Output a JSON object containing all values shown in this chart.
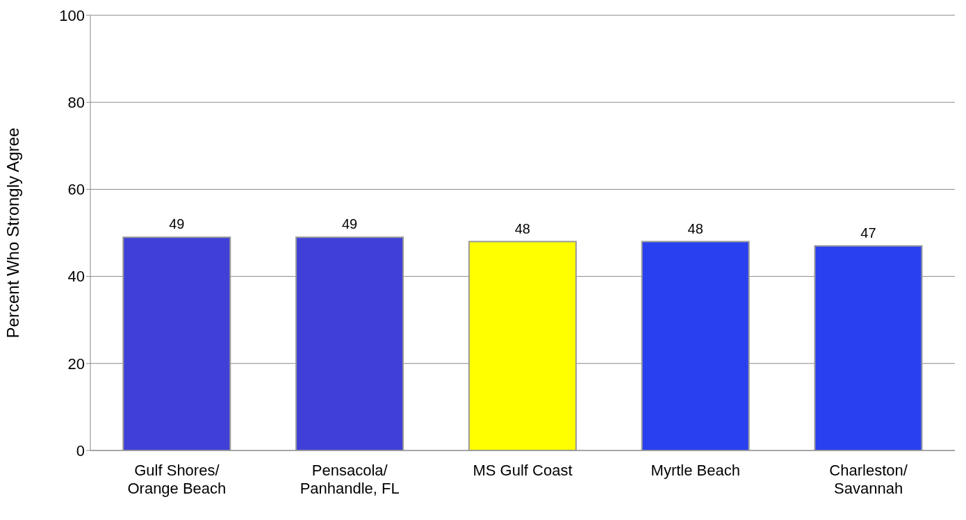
{
  "chart_data": {
    "type": "bar",
    "ylabel": "Percent Who Strongly Agree",
    "categories": [
      "Gulf Shores/\nOrange Beach",
      "Pensacola/\nPanhandle, FL",
      "MS Gulf Coast",
      "Myrtle Beach",
      "Charleston/\nSavannah"
    ],
    "values": [
      49,
      49,
      48,
      48,
      47
    ],
    "colors": [
      "#4040d8",
      "#4040d8",
      "#ffff00",
      "#2840f0",
      "#2840f0"
    ],
    "ylim": [
      0,
      100
    ],
    "yticks": [
      0,
      20,
      40,
      60,
      80,
      100
    ],
    "grid": "y",
    "data_labels": true
  }
}
